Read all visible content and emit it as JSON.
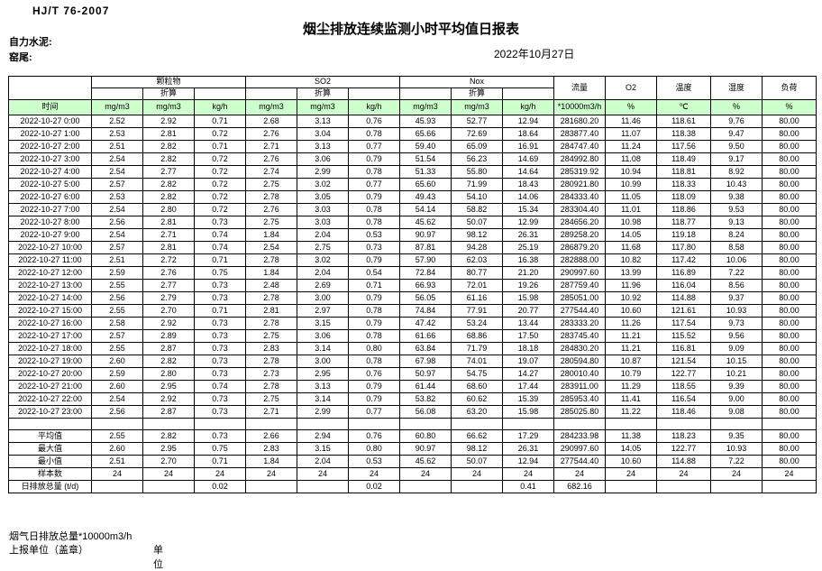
{
  "header": {
    "standard": "HJ/T 76-2007",
    "title": "烟尘排放连续监测小时平均值日报表",
    "company": "自力水泥:",
    "location": "窑尾:",
    "date": "2022年10月27日"
  },
  "table": {
    "header": {
      "time_label": "时间",
      "groups": [
        "颗粒物",
        "SO2",
        "Nox"
      ],
      "converted_label": "折算",
      "flow_label": "流量",
      "o2_label": "O2",
      "temp_label": "温度",
      "humidity_label": "湿度",
      "load_label": "负荷",
      "units": [
        "mg/m3",
        "mg/m3",
        "kg/h",
        "mg/m3",
        "mg/m3",
        "kg/h",
        "mg/m3",
        "mg/m3",
        "kg/h",
        "*10000m3/h",
        "%",
        "℃",
        "%",
        "%"
      ]
    },
    "rows": [
      {
        "time": "2022-10-27 0:00",
        "values": [
          "2.52",
          "2.92",
          "0.71",
          "2.68",
          "3.13",
          "0.76",
          "45.93",
          "52.77",
          "12.94",
          "281680.20",
          "11.46",
          "118.61",
          "9.76",
          "80.00"
        ]
      },
      {
        "time": "2022-10-27 1:00",
        "values": [
          "2.53",
          "2.81",
          "0.72",
          "2.76",
          "3.04",
          "0.78",
          "65.66",
          "72.69",
          "18.64",
          "283877.40",
          "11.07",
          "118.38",
          "9.47",
          "80.00"
        ]
      },
      {
        "time": "2022-10-27 2:00",
        "values": [
          "2.51",
          "2.82",
          "0.71",
          "2.71",
          "3.13",
          "0.77",
          "59.40",
          "65.09",
          "16.91",
          "284747.40",
          "11.24",
          "117.56",
          "9.50",
          "80.00"
        ]
      },
      {
        "time": "2022-10-27 3:00",
        "values": [
          "2.54",
          "2.82",
          "0.72",
          "2.76",
          "3.06",
          "0.79",
          "51.54",
          "56.23",
          "14.69",
          "284992.80",
          "11.08",
          "118.49",
          "9.17",
          "80.00"
        ]
      },
      {
        "time": "2022-10-27 4:00",
        "values": [
          "2.54",
          "2.77",
          "0.72",
          "2.74",
          "2.99",
          "0.78",
          "51.33",
          "55.80",
          "14.64",
          "285319.92",
          "10.94",
          "118.81",
          "8.92",
          "80.00"
        ]
      },
      {
        "time": "2022-10-27 5:00",
        "values": [
          "2.57",
          "2.82",
          "0.72",
          "2.75",
          "3.02",
          "0.77",
          "65.60",
          "71.99",
          "18.43",
          "280921.80",
          "10.99",
          "118.33",
          "10.43",
          "80.00"
        ]
      },
      {
        "time": "2022-10-27 6:00",
        "values": [
          "2.53",
          "2.82",
          "0.72",
          "2.78",
          "3.05",
          "0.79",
          "49.43",
          "54.10",
          "14.06",
          "284333.40",
          "11.05",
          "118.09",
          "9.38",
          "80.00"
        ]
      },
      {
        "time": "2022-10-27 7:00",
        "values": [
          "2.54",
          "2.80",
          "0.72",
          "2.76",
          "3.03",
          "0.78",
          "54.14",
          "58.82",
          "15.34",
          "283304.40",
          "11.01",
          "118.86",
          "9.53",
          "80.00"
        ]
      },
      {
        "time": "2022-10-27 8:00",
        "values": [
          "2.56",
          "2.81",
          "0.73",
          "2.75",
          "3.03",
          "0.78",
          "45.62",
          "50.07",
          "12.99",
          "284656.20",
          "10.98",
          "118.77",
          "9.13",
          "80.00"
        ]
      },
      {
        "time": "2022-10-27 9:00",
        "values": [
          "2.54",
          "2.71",
          "0.74",
          "1.84",
          "2.04",
          "0.53",
          "90.97",
          "98.12",
          "26.31",
          "289258.20",
          "14.05",
          "119.18",
          "8.24",
          "80.00"
        ]
      },
      {
        "time": "2022-10-27 10:00",
        "values": [
          "2.57",
          "2.81",
          "0.74",
          "2.54",
          "2.75",
          "0.73",
          "87.81",
          "94.28",
          "25.19",
          "286879.20",
          "11.68",
          "117.80",
          "8.58",
          "80.00"
        ]
      },
      {
        "time": "2022-10-27 11:00",
        "values": [
          "2.51",
          "2.72",
          "0.71",
          "2.78",
          "3.02",
          "0.79",
          "57.90",
          "62.03",
          "16.38",
          "282888.00",
          "10.82",
          "117.42",
          "10.06",
          "80.00"
        ]
      },
      {
        "time": "2022-10-27 12:00",
        "values": [
          "2.59",
          "2.76",
          "0.75",
          "1.84",
          "2.04",
          "0.54",
          "72.84",
          "80.77",
          "21.20",
          "290997.60",
          "13.99",
          "116.89",
          "7.22",
          "80.00"
        ]
      },
      {
        "time": "2022-10-27 13:00",
        "values": [
          "2.55",
          "2.77",
          "0.73",
          "2.48",
          "2.69",
          "0.71",
          "66.93",
          "72.01",
          "19.26",
          "287759.40",
          "11.96",
          "116.04",
          "8.56",
          "80.00"
        ]
      },
      {
        "time": "2022-10-27 14:00",
        "values": [
          "2.56",
          "2.79",
          "0.73",
          "2.78",
          "3.00",
          "0.79",
          "56.05",
          "61.16",
          "15.98",
          "285051.00",
          "10.92",
          "114.88",
          "9.37",
          "80.00"
        ]
      },
      {
        "time": "2022-10-27 15:00",
        "values": [
          "2.55",
          "2.70",
          "0.71",
          "2.81",
          "2.97",
          "0.78",
          "74.84",
          "77.91",
          "20.77",
          "277544.40",
          "10.60",
          "121.61",
          "10.93",
          "80.00"
        ]
      },
      {
        "time": "2022-10-27 16:00",
        "values": [
          "2.58",
          "2.92",
          "0.73",
          "2.78",
          "3.15",
          "0.79",
          "47.42",
          "53.24",
          "13.44",
          "283333.20",
          "11.26",
          "117.54",
          "9.73",
          "80.00"
        ]
      },
      {
        "time": "2022-10-27 17:00",
        "values": [
          "2.57",
          "2.89",
          "0.73",
          "2.75",
          "3.06",
          "0.78",
          "61.66",
          "68.86",
          "17.50",
          "283745.40",
          "11.21",
          "115.52",
          "9.56",
          "80.00"
        ]
      },
      {
        "time": "2022-10-27 18:00",
        "values": [
          "2.55",
          "2.87",
          "0.73",
          "2.83",
          "3.14",
          "0.80",
          "63.84",
          "71.79",
          "18.18",
          "284830.20",
          "11.21",
          "116.81",
          "9.09",
          "80.00"
        ]
      },
      {
        "time": "2022-10-27 19:00",
        "values": [
          "2.60",
          "2.82",
          "0.73",
          "2.78",
          "3.00",
          "0.78",
          "67.98",
          "74.01",
          "19.07",
          "280594.80",
          "10.87",
          "121.54",
          "10.15",
          "80.00"
        ]
      },
      {
        "time": "2022-10-27 20:00",
        "values": [
          "2.59",
          "2.80",
          "0.73",
          "2.73",
          "2.95",
          "0.76",
          "50.97",
          "54.75",
          "14.27",
          "280010.40",
          "10.79",
          "122.77",
          "10.21",
          "80.00"
        ]
      },
      {
        "time": "2022-10-27 21:00",
        "values": [
          "2.60",
          "2.95",
          "0.74",
          "2.78",
          "3.13",
          "0.79",
          "61.44",
          "68.60",
          "17.44",
          "283911.00",
          "11.29",
          "118.55",
          "9.39",
          "80.00"
        ]
      },
      {
        "time": "2022-10-27 22:00",
        "values": [
          "2.54",
          "2.92",
          "0.73",
          "2.75",
          "3.14",
          "0.79",
          "53.82",
          "60.62",
          "15.39",
          "285953.40",
          "11.41",
          "116.54",
          "9.00",
          "80.00"
        ]
      },
      {
        "time": "2022-10-27 23:00",
        "values": [
          "2.56",
          "2.87",
          "0.73",
          "2.71",
          "2.99",
          "0.77",
          "56.08",
          "63.20",
          "15.98",
          "285025.80",
          "11.22",
          "118.46",
          "9.08",
          "80.00"
        ]
      }
    ],
    "summary": [
      {
        "label": "平均值",
        "align": "center",
        "values": [
          "2.55",
          "2.82",
          "0.73",
          "2.66",
          "2.94",
          "0.76",
          "60.80",
          "66.62",
          "17.29",
          "284233.98",
          "11.38",
          "118.23",
          "9.35",
          "80.00"
        ]
      },
      {
        "label": "最大值",
        "align": "center",
        "values": [
          "2.60",
          "2.95",
          "0.75",
          "2.83",
          "3.15",
          "0.80",
          "90.97",
          "98.12",
          "26.31",
          "290997.60",
          "14.05",
          "122.77",
          "10.93",
          "80.00"
        ]
      },
      {
        "label": "最小值",
        "align": "center",
        "values": [
          "2.51",
          "2.70",
          "0.71",
          "1.84",
          "2.04",
          "0.53",
          "45.62",
          "50.07",
          "12.94",
          "277544.40",
          "10.60",
          "114.88",
          "7.22",
          "80.00"
        ]
      },
      {
        "label": "样本数",
        "align": "center",
        "values": [
          "24",
          "24",
          "24",
          "24",
          "24",
          "24",
          "24",
          "24",
          "24",
          "24",
          "24",
          "24",
          "24",
          "24"
        ]
      },
      {
        "label": "日排放总量 (t/d)",
        "align": "left",
        "values": [
          "",
          "",
          "0.02",
          "",
          "",
          "0.02",
          "",
          "",
          "0.41",
          "682.16",
          "",
          "",
          "",
          ""
        ]
      }
    ]
  },
  "footer": {
    "line1": "烟气日排放总量*10000m3/h",
    "report_unit": "上报单位（盖章）",
    "unit": "单位"
  }
}
